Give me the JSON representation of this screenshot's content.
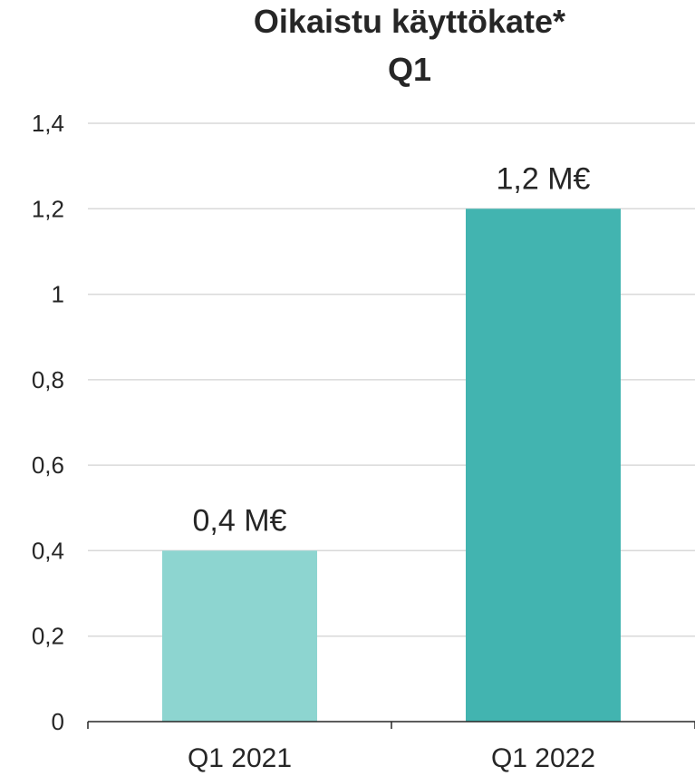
{
  "chart_data": {
    "type": "bar",
    "title": [
      "Oikaistu käyttökate*",
      "Q1"
    ],
    "categories": [
      "Q1 2021",
      "Q1 2022"
    ],
    "values": [
      0.4,
      1.2
    ],
    "data_labels": [
      "0,4 M€",
      "1,2 M€"
    ],
    "bar_colors": [
      "#8dd5d0",
      "#42b4b0"
    ],
    "ylim": [
      0,
      1.4
    ],
    "yticks": [
      0,
      0.2,
      0.4,
      0.6,
      0.8,
      1,
      1.2,
      1.4
    ],
    "ytick_labels": [
      "0",
      "0,2",
      "0,4",
      "0,6",
      "0,8",
      "1",
      "1,2",
      "1,4"
    ],
    "grid": true,
    "legend": "none"
  }
}
